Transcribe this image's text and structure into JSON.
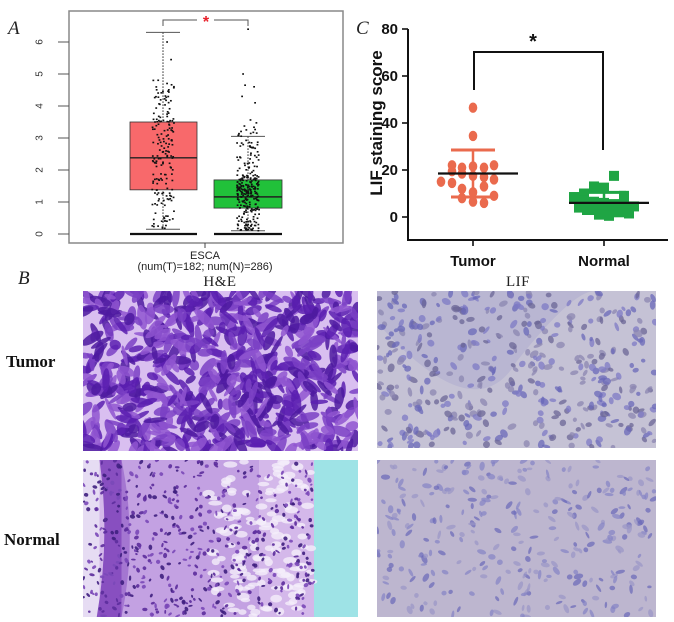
{
  "panels": {
    "A": {
      "letter": "A"
    },
    "B": {
      "letter": "B"
    },
    "C": {
      "letter": "C"
    }
  },
  "histology": {
    "columns": [
      "H&E",
      "LIF"
    ],
    "rows": [
      "Tumor",
      "Normal"
    ],
    "colors": {
      "he_tumor": "#7a3fc4",
      "he_normal": "#b890d8",
      "he_background": "#9ee3e6",
      "lif_tumor": "#b9b6d2",
      "lif_normal": "#bdb6cf",
      "nuclei": "#6a68b8"
    }
  },
  "chart_data": [
    {
      "panel": "A",
      "type": "box",
      "title": "",
      "xlabel": "ESCA",
      "xsublabel": "(num(T)=182; num(N)=286)",
      "ylabel": "",
      "ylim": [
        0,
        6.5
      ],
      "yticks": [
        0,
        1,
        2,
        3,
        4,
        5,
        6
      ],
      "significance": "*",
      "significance_color": "#e8202a",
      "series": [
        {
          "name": "Tumor",
          "n": 182,
          "color": "#f8696b",
          "min": 0.15,
          "q1": 1.38,
          "median": 2.38,
          "q3": 3.5,
          "max": 6.3,
          "floor": 0
        },
        {
          "name": "Normal",
          "n": 286,
          "color": "#21c13a",
          "min": 0.1,
          "q1": 0.81,
          "median": 1.16,
          "q3": 1.69,
          "max": 3.05,
          "floor": 0,
          "outliers_max": 6.4
        }
      ]
    },
    {
      "panel": "C",
      "type": "scatter",
      "title": "",
      "xlabel": "",
      "ylabel": "LIF staining score",
      "ylim": [
        -10,
        80
      ],
      "yticks": [
        0,
        20,
        40,
        60,
        80
      ],
      "categories": [
        "Tumor",
        "Normal"
      ],
      "significance": "*",
      "series": [
        {
          "name": "Tumor",
          "marker": "circle",
          "color": "#ea6a4d",
          "mean": 18.5,
          "sd_upper": 28.5,
          "sd_lower": 8.5,
          "values": [
            46.5,
            34.5,
            22.0,
            21.0,
            21.5,
            21.0,
            22.0,
            19.5,
            18.5,
            17.5,
            17.0,
            16.0,
            15.0,
            14.5,
            13.0,
            12.0,
            10.5,
            9.0,
            8.0,
            6.5,
            6.0
          ]
        },
        {
          "name": "Normal",
          "marker": "square",
          "color": "#1fa544",
          "mean": 6.0,
          "sd_upper": 10.5,
          "sd_lower": 1.5,
          "values": [
            17.5,
            13.0,
            12.5,
            10.0,
            9.0,
            8.5,
            7.0,
            6.5,
            6.0,
            5.5,
            5.0,
            4.5,
            4.0,
            3.5,
            3.0,
            2.5,
            2.0,
            1.5,
            1.0,
            0.5
          ]
        }
      ]
    }
  ]
}
